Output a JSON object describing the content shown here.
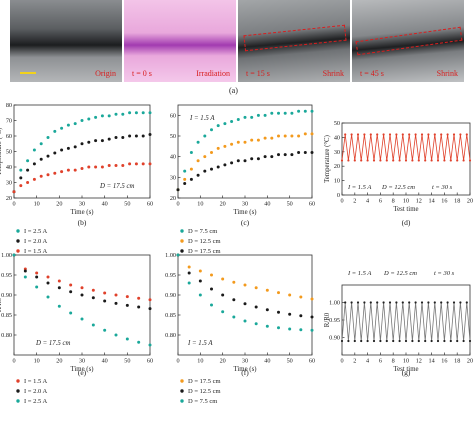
{
  "photos": {
    "frames": [
      {
        "label": "Origin",
        "bg": "#4a4e52"
      },
      {
        "label": "t = 0 s",
        "bg": "#e8a6d8"
      },
      {
        "label": "Irradiation",
        "bg": "#e8a6d8"
      },
      {
        "label": "t = 15 s",
        "bg": "#7c7f82"
      },
      {
        "label": "Shrink",
        "bg": "#6e7174"
      },
      {
        "label": "t = 45 s",
        "bg": "#6e7174"
      },
      {
        "label": "Shrink",
        "bg": "#6e7174"
      }
    ],
    "panel_label": "(a)"
  },
  "colors": {
    "red": "#e0412b",
    "orange": "#f39a1d",
    "black": "#1a1a1a",
    "teal": "#1aa89a",
    "blue": "#2f9fd6",
    "grey": "#777777"
  },
  "chart_data": [
    {
      "id": "b",
      "type": "scatter",
      "panel_label": "(b)",
      "xlabel": "Time (s)",
      "ylabel": "Temperature (°C)",
      "xlim": [
        0,
        60
      ],
      "ylim": [
        20,
        80
      ],
      "xticks": [
        0,
        10,
        20,
        30,
        40,
        50,
        60
      ],
      "yticks": [
        20,
        30,
        40,
        50,
        60,
        70,
        80
      ],
      "annotation": "D = 17.5 cm",
      "x": [
        0,
        3,
        6,
        9,
        12,
        15,
        18,
        21,
        24,
        27,
        30,
        33,
        36,
        39,
        42,
        45,
        48,
        51,
        54,
        57,
        60
      ],
      "series": [
        {
          "name": "I = 2.5 A",
          "color": "teal",
          "values": [
            24,
            38,
            44,
            51,
            55,
            59,
            63,
            65,
            67,
            68,
            70,
            71,
            72,
            73,
            73,
            74,
            74,
            75,
            75,
            75,
            75
          ]
        },
        {
          "name": "I = 2.0 A",
          "color": "black",
          "values": [
            24,
            33,
            38,
            42,
            45,
            47,
            49,
            51,
            52,
            53,
            55,
            56,
            57,
            57,
            58,
            59,
            59,
            60,
            60,
            60,
            61
          ]
        },
        {
          "name": "I = 1.5 A",
          "color": "red",
          "values": [
            24,
            28,
            30,
            32,
            34,
            35,
            36,
            37,
            38,
            38,
            39,
            40,
            40,
            40,
            41,
            41,
            41,
            42,
            42,
            42,
            42
          ]
        }
      ],
      "legend": [
        "I = 2.5 A",
        "I = 2.0 A",
        "I = 1.5 A"
      ]
    },
    {
      "id": "c",
      "type": "scatter",
      "panel_label": "(c)",
      "xlabel": "Time (s)",
      "ylabel": "",
      "xlim": [
        0,
        60
      ],
      "ylim": [
        20,
        65
      ],
      "xticks": [
        0,
        10,
        20,
        30,
        40,
        50,
        60
      ],
      "yticks": [
        20,
        30,
        40,
        50,
        60
      ],
      "annotation": "I = 1.5 A",
      "x": [
        0,
        3,
        6,
        9,
        12,
        15,
        18,
        21,
        24,
        27,
        30,
        33,
        36,
        39,
        42,
        45,
        48,
        51,
        54,
        57,
        60
      ],
      "series": [
        {
          "name": "D = 7.5 cm",
          "color": "teal",
          "values": [
            24,
            33,
            42,
            47,
            50,
            53,
            55,
            56,
            57,
            58,
            59,
            59,
            60,
            60,
            61,
            61,
            61,
            61,
            62,
            62,
            62
          ]
        },
        {
          "name": "D = 12.5 cm",
          "color": "orange",
          "values": [
            24,
            29,
            34,
            38,
            40,
            42,
            44,
            45,
            46,
            47,
            47,
            48,
            48,
            49,
            49,
            50,
            50,
            50,
            50,
            51,
            51
          ]
        },
        {
          "name": "D = 17.5 cm",
          "color": "black",
          "values": [
            24,
            27,
            29,
            31,
            33,
            34,
            35,
            36,
            37,
            38,
            38,
            39,
            39,
            40,
            40,
            41,
            41,
            41,
            42,
            42,
            42
          ]
        }
      ],
      "legend": [
        "D = 7.5 cm",
        "D = 12.5 cm",
        "D = 17.5 cm"
      ]
    },
    {
      "id": "d",
      "type": "line",
      "panel_label": "(d)",
      "xlabel": "Test time",
      "ylabel": "Temperature (°C)",
      "xlim": [
        0,
        20
      ],
      "ylim": [
        0,
        50
      ],
      "xticks": [
        0,
        2,
        4,
        6,
        8,
        10,
        12,
        14,
        16,
        18,
        20
      ],
      "yticks": [
        0,
        10,
        20,
        30,
        40,
        50
      ],
      "annotations": [
        "I = 1.5 A",
        "D = 12.5 cm",
        "t = 30 s"
      ],
      "cycles": 20,
      "high": 42,
      "low": 24,
      "color": "red"
    },
    {
      "id": "e",
      "type": "scatter",
      "panel_label": "(e)",
      "xlabel": "Time (s)",
      "ylabel": "R/R0",
      "xlim": [
        0,
        60
      ],
      "ylim": [
        0.75,
        1.0
      ],
      "xticks": [
        0,
        10,
        20,
        30,
        40,
        50,
        60
      ],
      "yticks": [
        0.8,
        0.85,
        0.9,
        0.95,
        1.0
      ],
      "annotation": "D = 17.5 cm",
      "x": [
        0,
        5,
        10,
        15,
        20,
        25,
        30,
        35,
        40,
        45,
        50,
        55,
        60
      ],
      "series": [
        {
          "name": "I = 1.5 A",
          "color": "red",
          "values": [
            1.0,
            0.965,
            0.955,
            0.945,
            0.935,
            0.925,
            0.918,
            0.912,
            0.905,
            0.9,
            0.896,
            0.892,
            0.888
          ]
        },
        {
          "name": "I = 2.0 A",
          "color": "black",
          "values": [
            1.0,
            0.96,
            0.945,
            0.93,
            0.918,
            0.908,
            0.9,
            0.893,
            0.885,
            0.879,
            0.874,
            0.87,
            0.866
          ]
        },
        {
          "name": "I = 2.5 A",
          "color": "teal",
          "values": [
            1.0,
            0.945,
            0.92,
            0.895,
            0.872,
            0.855,
            0.84,
            0.825,
            0.812,
            0.8,
            0.79,
            0.782,
            0.775
          ]
        }
      ],
      "legend": [
        "I = 1.5 A",
        "I = 2.0 A",
        "I = 2.5 A"
      ]
    },
    {
      "id": "f",
      "type": "scatter",
      "panel_label": "(f)",
      "xlabel": "Time (s)",
      "ylabel": "",
      "xlim": [
        0,
        60
      ],
      "ylim": [
        0.75,
        1.0
      ],
      "xticks": [
        0,
        10,
        20,
        30,
        40,
        50,
        60
      ],
      "yticks": [
        0.8,
        0.85,
        0.9,
        0.95,
        1.0
      ],
      "annotation": "I = 1.5 A",
      "x": [
        0,
        5,
        10,
        15,
        20,
        25,
        30,
        35,
        40,
        45,
        50,
        55,
        60
      ],
      "series": [
        {
          "name": "D = 17.5 cm",
          "color": "orange",
          "values": [
            1.0,
            0.97,
            0.96,
            0.95,
            0.94,
            0.932,
            0.925,
            0.918,
            0.912,
            0.906,
            0.9,
            0.895,
            0.89
          ]
        },
        {
          "name": "D = 12.5 cm",
          "color": "black",
          "values": [
            1.0,
            0.955,
            0.935,
            0.915,
            0.9,
            0.888,
            0.878,
            0.87,
            0.863,
            0.857,
            0.852,
            0.848,
            0.845
          ]
        },
        {
          "name": "D = 7.5 cm",
          "color": "teal",
          "values": [
            1.0,
            0.93,
            0.9,
            0.875,
            0.858,
            0.845,
            0.835,
            0.828,
            0.822,
            0.818,
            0.815,
            0.813,
            0.812
          ]
        }
      ],
      "legend": [
        "D = 17.5 cm",
        "D = 12.5 cm",
        "D = 7.5 cm"
      ]
    },
    {
      "id": "g",
      "type": "line",
      "panel_label": "(g)",
      "xlabel": "Test time",
      "ylabel": "R/R0",
      "xlim": [
        0,
        20
      ],
      "ylim": [
        0.85,
        1.05
      ],
      "xticks": [
        0,
        2,
        4,
        6,
        8,
        10,
        12,
        14,
        16,
        18,
        20
      ],
      "yticks": [
        0.9,
        0.95,
        1.0
      ],
      "annotations": [
        "I = 1.5 A",
        "D = 12.5 cm",
        "t = 30 s"
      ],
      "cycles": 20,
      "high": 1.0,
      "low": 0.89,
      "color": "grey"
    }
  ]
}
